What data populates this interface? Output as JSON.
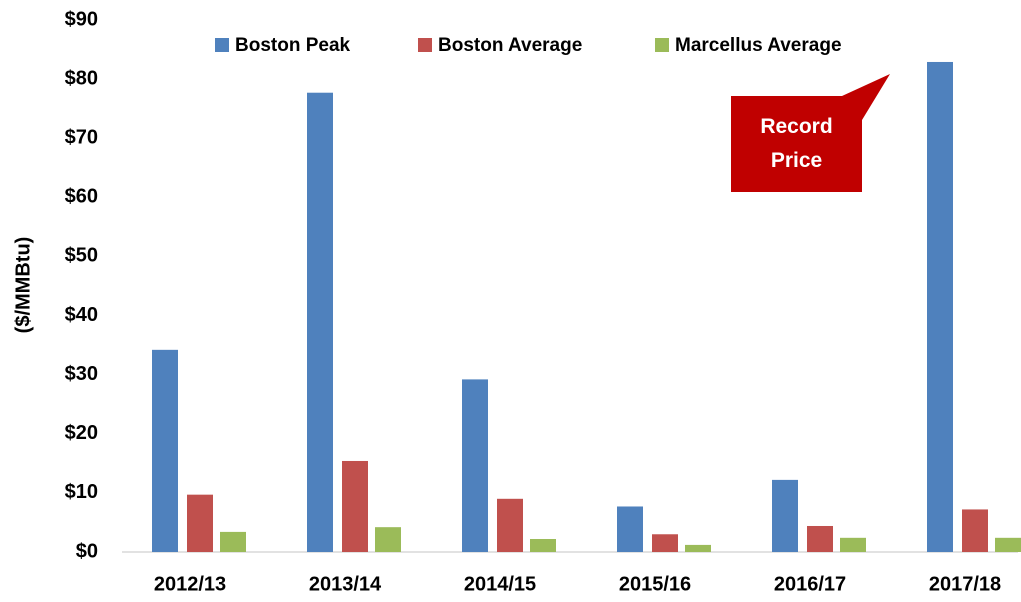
{
  "chart_data": {
    "type": "bar",
    "y_label": "($/MMBtu)",
    "categories": [
      "2012/13",
      "2013/14",
      "2014/15",
      "2015/16",
      "2016/17",
      "2017/18"
    ],
    "series": [
      {
        "name": "Boston Peak",
        "color": "#4f81bd",
        "values": [
          34.2,
          77.7,
          29.2,
          7.7,
          12.2,
          82.9
        ]
      },
      {
        "name": "Boston Average",
        "color": "#c0504d",
        "values": [
          9.7,
          15.4,
          9.0,
          3.0,
          4.4,
          7.2
        ]
      },
      {
        "name": "Marcellus Average",
        "color": "#9bbb59",
        "values": [
          3.4,
          4.2,
          2.2,
          1.2,
          2.4,
          2.4
        ]
      }
    ],
    "ylim": [
      0,
      90
    ],
    "yticks": [
      {
        "value": 0,
        "label": "$0"
      },
      {
        "value": 10,
        "label": "$10"
      },
      {
        "value": 20,
        "label": "$20"
      },
      {
        "value": 30,
        "label": "$30"
      },
      {
        "value": 40,
        "label": "$40"
      },
      {
        "value": 50,
        "label": "$50"
      },
      {
        "value": 60,
        "label": "$60"
      },
      {
        "value": 70,
        "label": "$70"
      },
      {
        "value": 80,
        "label": "$80"
      },
      {
        "value": 90,
        "label": "$90"
      }
    ],
    "grid": false,
    "legend": "top",
    "annotation": {
      "text": "Record Price",
      "color": "#c00000"
    }
  }
}
